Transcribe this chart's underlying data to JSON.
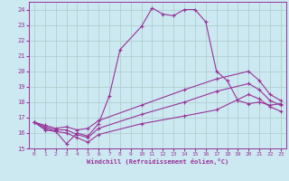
{
  "xlabel": "Windchill (Refroidissement éolien,°C)",
  "xlim": [
    -0.5,
    23.5
  ],
  "ylim": [
    15,
    24.5
  ],
  "yticks": [
    15,
    16,
    17,
    18,
    19,
    20,
    21,
    22,
    23,
    24
  ],
  "xticks": [
    0,
    1,
    2,
    3,
    4,
    5,
    6,
    7,
    8,
    9,
    10,
    11,
    12,
    13,
    14,
    15,
    16,
    17,
    18,
    19,
    20,
    21,
    22,
    23
  ],
  "bg_color": "#cce8f0",
  "grid_color": "#aacccc",
  "line_color": "#993399",
  "line_width": 0.8,
  "marker": "+",
  "marker_size": 3.5,
  "marker_lw": 0.8,
  "line1_x": [
    0,
    1,
    2,
    3,
    4,
    5,
    6,
    7,
    8,
    10,
    11,
    12,
    13,
    14,
    15,
    16,
    17,
    18,
    19,
    20,
    21,
    22,
    23
  ],
  "line1_y": [
    16.7,
    16.2,
    16.1,
    15.3,
    16.0,
    15.8,
    16.6,
    18.4,
    21.4,
    22.9,
    24.1,
    23.7,
    23.6,
    24.0,
    24.0,
    23.2,
    20.0,
    19.4,
    18.1,
    17.9,
    18.0,
    17.8,
    17.9
  ],
  "line2_x": [
    0,
    1,
    2,
    3,
    4,
    5,
    6,
    10,
    14,
    17,
    20,
    21,
    22,
    23
  ],
  "line2_y": [
    16.7,
    16.5,
    16.3,
    16.4,
    16.2,
    16.3,
    16.8,
    17.8,
    18.8,
    19.5,
    20.0,
    19.4,
    18.5,
    18.1
  ],
  "line3_x": [
    0,
    1,
    2,
    3,
    4,
    5,
    6,
    10,
    14,
    17,
    20,
    21,
    22,
    23
  ],
  "line3_y": [
    16.7,
    16.4,
    16.2,
    16.2,
    15.9,
    15.7,
    16.3,
    17.2,
    18.0,
    18.7,
    19.2,
    18.8,
    18.1,
    17.8
  ],
  "line4_x": [
    0,
    1,
    2,
    3,
    4,
    5,
    6,
    10,
    14,
    17,
    20,
    21,
    22,
    23
  ],
  "line4_y": [
    16.7,
    16.3,
    16.1,
    16.0,
    15.7,
    15.4,
    15.9,
    16.6,
    17.1,
    17.5,
    18.5,
    18.2,
    17.7,
    17.4
  ]
}
